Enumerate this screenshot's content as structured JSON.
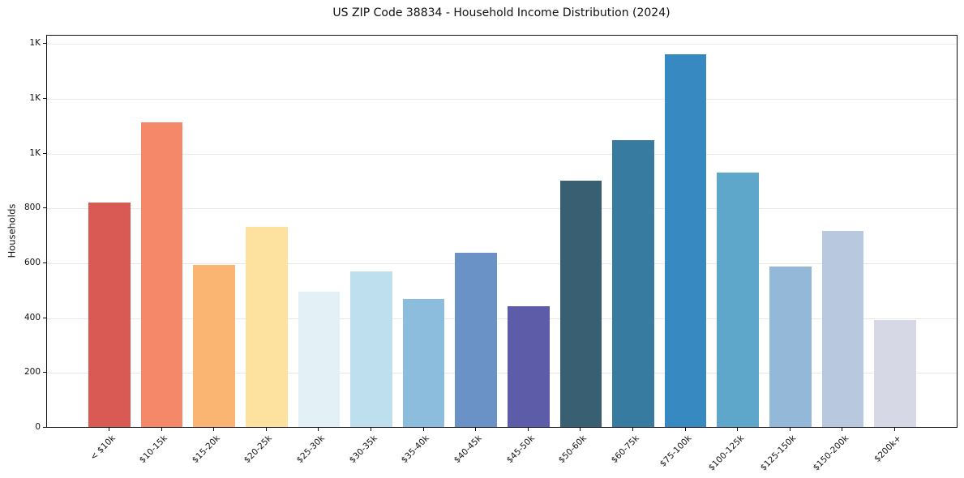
{
  "figure": {
    "background": "#ffffff"
  },
  "chart_data": {
    "type": "bar",
    "title": "US ZIP Code 38834 - Household Income Distribution (2024)",
    "xlabel": "",
    "ylabel": "Households",
    "categories": [
      "< $10k",
      "$10-15k",
      "$15-20k",
      "$20-25k",
      "$25-30k",
      "$30-35k",
      "$35-40k",
      "$40-45k",
      "$45-50k",
      "$50-60k",
      "$60-75k",
      "$75-100k",
      "$100-125k",
      "$125-150k",
      "$150-200k",
      "$200k+"
    ],
    "values": [
      818,
      1112,
      590,
      731,
      492,
      566,
      468,
      634,
      440,
      898,
      1045,
      1360,
      929,
      585,
      716,
      389
    ],
    "bar_colors": [
      "#d95a54",
      "#f48868",
      "#f9b571",
      "#fce29e",
      "#e3f0f6",
      "#bddfee",
      "#8cbddd",
      "#6b92c6",
      "#5c5ca8",
      "#395f73",
      "#377ca0",
      "#368ac1",
      "#5fa6cb",
      "#94b9d8",
      "#b8c8df",
      "#d6d8e5"
    ],
    "ylim": [
      0,
      1430
    ],
    "xlim": [
      -1.19,
      16.19
    ],
    "bar_width": 0.8,
    "yticks": {
      "values": [
        0,
        200,
        400,
        600,
        800,
        1000,
        1200,
        1400
      ],
      "labels": [
        "0",
        "200",
        "400",
        "600",
        "800",
        "1K",
        "1K",
        "1K"
      ]
    },
    "grid": "horizontal",
    "grid_color": "#e8e8ea",
    "axis_color": "#111111",
    "legend": "none"
  }
}
